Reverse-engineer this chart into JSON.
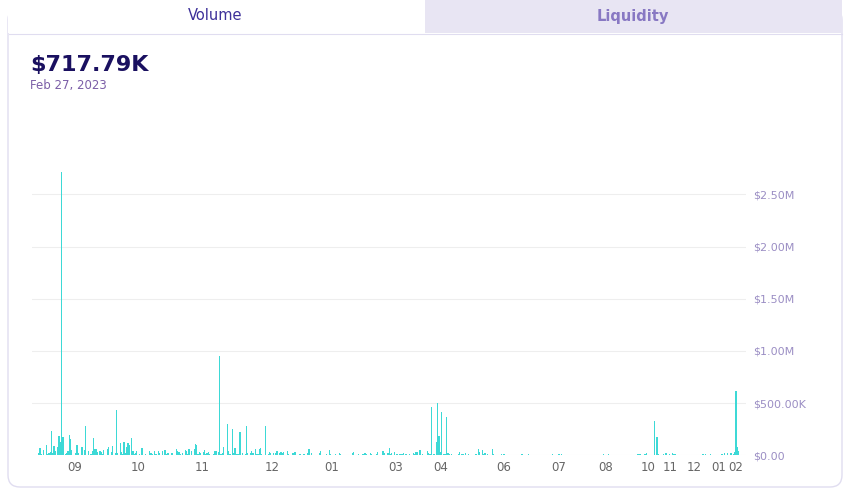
{
  "title_value": "$717.79K",
  "title_date": "Feb 27, 2023",
  "tab_volume": "Volume",
  "tab_liquidity": "Liquidity",
  "title_value_color": "#1a1060",
  "title_date_color": "#7b5ea7",
  "tab_active_color": "#3d3099",
  "tab_inactive_color": "#8878c3",
  "tab_inactive_bg": "#e8e5f3",
  "bar_color": "#3dd9d6",
  "ytick_color": "#9b8ec4",
  "xtick_color": "#666666",
  "bg_color": "#ffffff",
  "outer_bg": "#f5f4fb",
  "chart_bg": "#ffffff",
  "ylim": [
    0,
    2750000
  ],
  "yticks": [
    0,
    500000,
    1000000,
    1500000,
    2000000,
    2500000
  ],
  "ytick_labels": [
    "$0.00",
    "$500.00K",
    "$1.00M",
    "$1.50M",
    "$2.00M",
    "$2.50M"
  ],
  "xtick_labels": [
    "09",
    "10",
    "11",
    "12",
    "01",
    "03",
    "04",
    "06",
    "07",
    "08",
    "10",
    "11",
    "12",
    "01",
    "02"
  ],
  "grid_color": "#eeeeee",
  "peak_value": 2717790,
  "peak_index": 18,
  "n_bars": 550
}
